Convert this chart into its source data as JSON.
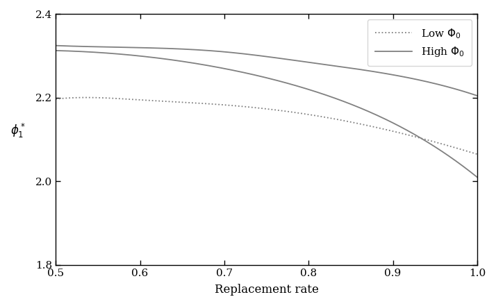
{
  "xlabel": "Replacement rate",
  "ylabel": "$\\phi_1^*$",
  "xlim": [
    0.5,
    1.0
  ],
  "ylim": [
    1.8,
    2.4
  ],
  "xticks": [
    0.5,
    0.6,
    0.7,
    0.8,
    0.9,
    1.0
  ],
  "yticks": [
    1.8,
    2.0,
    2.2,
    2.4
  ],
  "line_color": "#808080",
  "background_color": "#ffffff",
  "low_phi_x": [
    0.5,
    0.52,
    0.6,
    0.7,
    0.8,
    0.9,
    1.0
  ],
  "low_phi_y": [
    2.197,
    2.2,
    2.195,
    2.183,
    2.16,
    2.12,
    2.065
  ],
  "high_phi_upper_x": [
    0.5,
    0.6,
    0.7,
    0.8,
    0.9,
    1.0
  ],
  "high_phi_upper_y": [
    2.325,
    2.32,
    2.31,
    2.285,
    2.255,
    2.205
  ],
  "high_phi_lower_x": [
    0.5,
    0.6,
    0.7,
    0.8,
    0.9,
    1.0
  ],
  "high_phi_lower_y": [
    2.313,
    2.3,
    2.27,
    2.22,
    2.14,
    2.01
  ],
  "legend_low": "Low $\\Phi_0$",
  "legend_high": "High $\\Phi_0$"
}
